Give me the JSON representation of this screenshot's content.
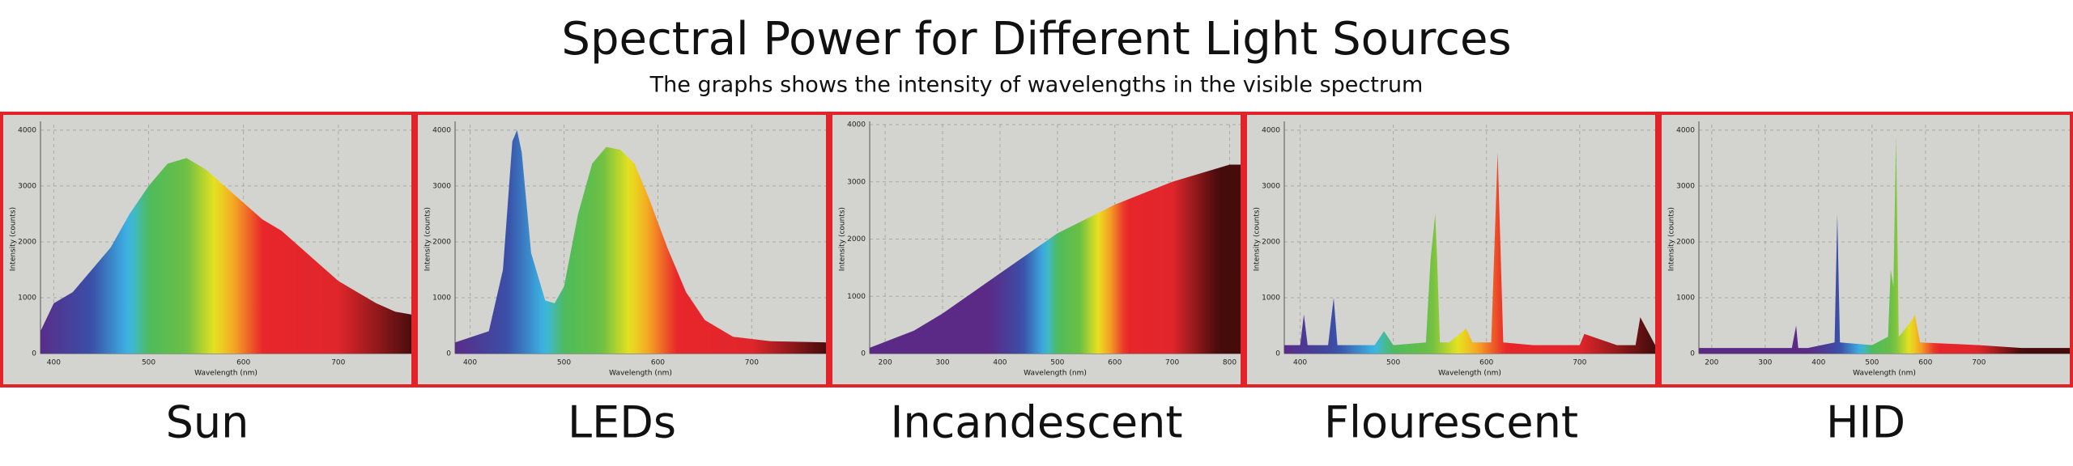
{
  "title": "Spectral Power for Different Light Sources",
  "subtitle": "The graphs shows the intensity of wavelengths in the visible spectrum",
  "chart_data": [
    {
      "type": "area",
      "title": "Sun",
      "x_label": "Wavelength (nm)",
      "y_label": "Intensity (counts)",
      "x": [
        386,
        400,
        420,
        440,
        460,
        480,
        500,
        520,
        540,
        560,
        580,
        600,
        620,
        640,
        660,
        680,
        700,
        720,
        740,
        760,
        777
      ],
      "values": [
        400,
        900,
        1100,
        1500,
        1900,
        2500,
        3000,
        3400,
        3500,
        3300,
        3000,
        2700,
        2400,
        2200,
        1900,
        1600,
        1300,
        1100,
        900,
        750,
        700
      ],
      "xlim": [
        386,
        777
      ],
      "ylim": [
        0,
        4100
      ],
      "xticks": [
        400,
        500,
        600,
        700
      ],
      "yticks": [
        0,
        1000,
        2000,
        3000,
        4000
      ],
      "grid": true
    },
    {
      "type": "area",
      "title": "LEDs",
      "x_label": "Wavelength (nm)",
      "y_label": "Intensity (counts)",
      "x": [
        384,
        420,
        435,
        445,
        450,
        455,
        465,
        480,
        490,
        500,
        515,
        530,
        545,
        560,
        575,
        590,
        610,
        630,
        650,
        680,
        720,
        779
      ],
      "values": [
        200,
        400,
        1500,
        3800,
        4000,
        3600,
        1800,
        950,
        900,
        1200,
        2500,
        3400,
        3700,
        3650,
        3400,
        2800,
        1900,
        1100,
        600,
        300,
        220,
        200
      ],
      "xlim": [
        384,
        779
      ],
      "ylim": [
        0,
        4100
      ],
      "xticks": [
        400,
        500,
        600,
        700
      ],
      "yticks": [
        0,
        1000,
        2000,
        3000,
        4000
      ],
      "grid": true
    },
    {
      "type": "area",
      "title": "Incandescent",
      "x_label": "Wavelength (nm)",
      "y_label": "Intensity (counts)",
      "x": [
        173,
        250,
        300,
        400,
        500,
        600,
        700,
        800,
        819
      ],
      "values": [
        100,
        400,
        700,
        1400,
        2100,
        2600,
        3000,
        3300,
        3300
      ],
      "xlim": [
        173,
        819
      ],
      "ylim": [
        0,
        4000
      ],
      "xticks": [
        200,
        300,
        400,
        500,
        600,
        700,
        800
      ],
      "yticks": [
        0,
        1000,
        2000,
        3000,
        4000
      ],
      "grid": true
    },
    {
      "type": "area",
      "title": "Flourescent",
      "x_label": "Wavelength (nm)",
      "y_label": "Intensity (counts)",
      "x": [
        383,
        400,
        404,
        408,
        430,
        436,
        440,
        480,
        490,
        500,
        535,
        540,
        545,
        547,
        550,
        560,
        575,
        578,
        585,
        605,
        612,
        618,
        650,
        700,
        705,
        740,
        760,
        765,
        781
      ],
      "values": [
        150,
        150,
        700,
        150,
        150,
        1000,
        150,
        150,
        400,
        150,
        200,
        1700,
        2500,
        1700,
        200,
        200,
        400,
        450,
        200,
        200,
        3600,
        200,
        150,
        150,
        350,
        150,
        150,
        650,
        150
      ],
      "xlim": [
        383,
        781
      ],
      "ylim": [
        0,
        4100
      ],
      "xticks": [
        400,
        500,
        600,
        700
      ],
      "yticks": [
        0,
        1000,
        2000,
        3000,
        4000
      ],
      "grid": true
    },
    {
      "type": "area",
      "title": "HID",
      "x_label": "Wavelength (nm)",
      "y_label": "Intensity (counts)",
      "x": [
        176,
        350,
        358,
        362,
        380,
        430,
        435,
        440,
        500,
        530,
        535,
        540,
        545,
        550,
        575,
        580,
        590,
        700,
        780,
        870
      ],
      "values": [
        100,
        100,
        500,
        100,
        100,
        200,
        2500,
        200,
        150,
        300,
        1500,
        1200,
        3900,
        300,
        600,
        700,
        200,
        150,
        100,
        100
      ],
      "xlim": [
        176,
        870
      ],
      "ylim": [
        0,
        4100
      ],
      "xticks": [
        200,
        300,
        400,
        500,
        600,
        700
      ],
      "yticks": [
        0,
        1000,
        2000,
        3000,
        4000
      ],
      "grid": true
    }
  ]
}
